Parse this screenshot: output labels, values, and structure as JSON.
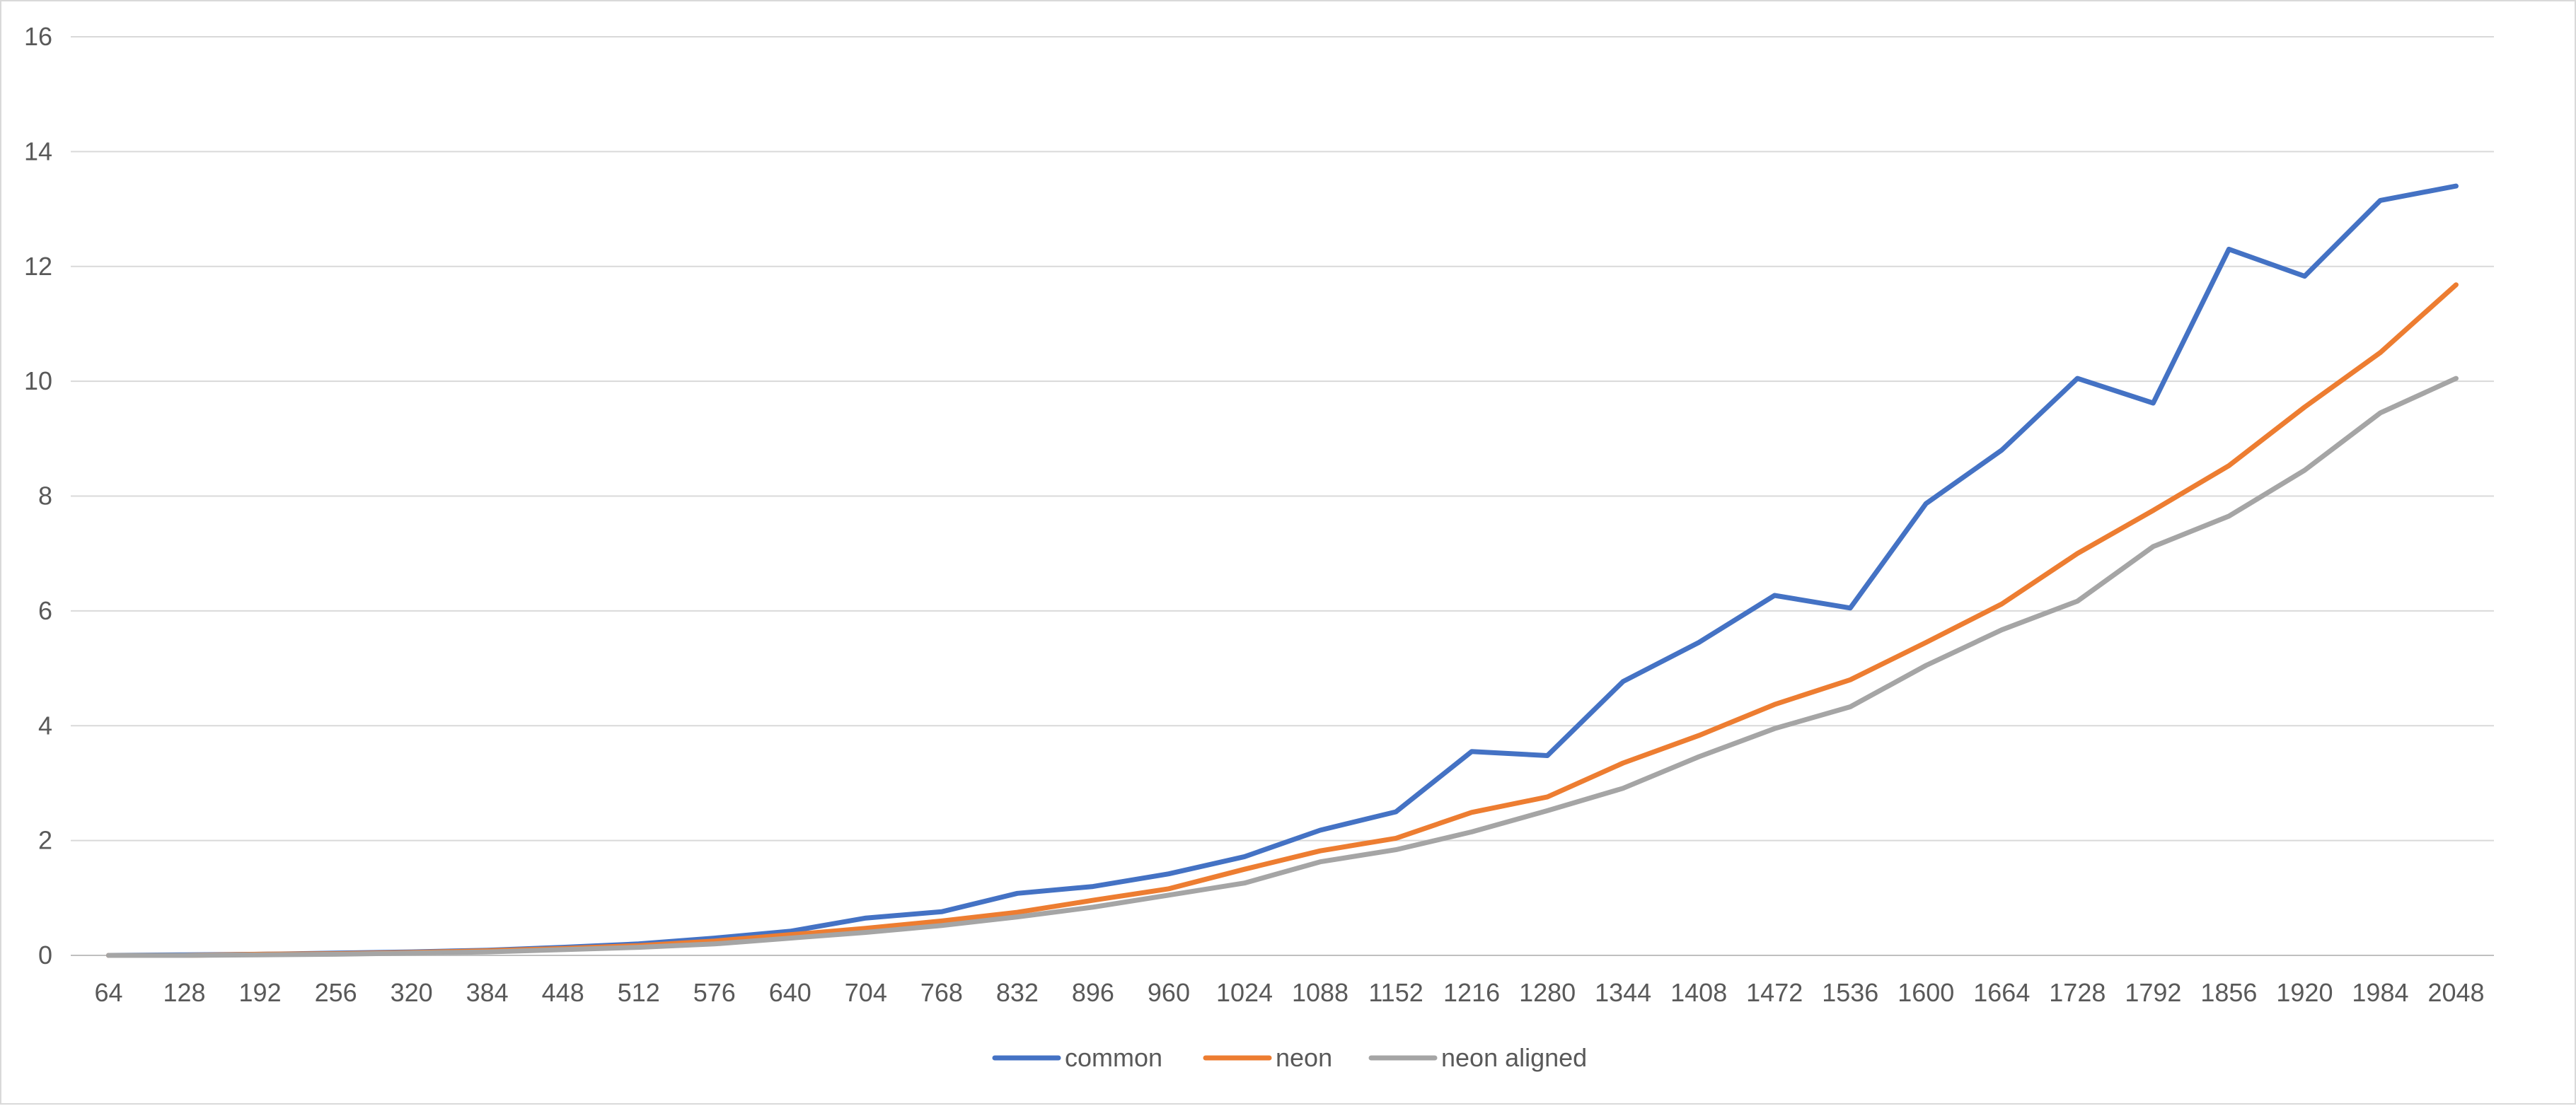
{
  "chart_data": {
    "type": "line",
    "title": "",
    "xlabel": "",
    "ylabel": "",
    "ylim": [
      0,
      16
    ],
    "yticks": [
      0,
      2,
      4,
      6,
      8,
      10,
      12,
      14,
      16
    ],
    "grid": true,
    "legend_position": "bottom",
    "categories": [
      "64",
      "128",
      "192",
      "256",
      "320",
      "384",
      "448",
      "512",
      "576",
      "640",
      "704",
      "768",
      "832",
      "896",
      "960",
      "1024",
      "1088",
      "1152",
      "1216",
      "1280",
      "1344",
      "1408",
      "1472",
      "1536",
      "1600",
      "1664",
      "1728",
      "1792",
      "1856",
      "1920",
      "1984",
      "2048"
    ],
    "series": [
      {
        "name": "common",
        "color": "#4472c4",
        "values": [
          0.0,
          0.01,
          0.02,
          0.04,
          0.06,
          0.09,
          0.14,
          0.2,
          0.3,
          0.42,
          0.65,
          0.76,
          1.08,
          1.2,
          1.42,
          1.72,
          2.18,
          2.5,
          3.55,
          3.48,
          4.77,
          5.45,
          6.27,
          6.05,
          7.87,
          8.8,
          10.05,
          9.62,
          12.3,
          11.83,
          13.15,
          13.4
        ]
      },
      {
        "name": "neon",
        "color": "#ed7d31",
        "values": [
          0.0,
          0.0,
          0.02,
          0.03,
          0.05,
          0.08,
          0.12,
          0.17,
          0.25,
          0.36,
          0.47,
          0.6,
          0.75,
          0.96,
          1.16,
          1.5,
          1.82,
          2.04,
          2.49,
          2.76,
          3.35,
          3.83,
          4.37,
          4.8,
          5.45,
          6.12,
          7.0,
          7.75,
          8.53,
          9.55,
          10.5,
          11.68
        ]
      },
      {
        "name": "neon aligned",
        "color": "#a5a5a5",
        "values": [
          0.0,
          0.0,
          0.01,
          0.02,
          0.04,
          0.06,
          0.1,
          0.14,
          0.2,
          0.3,
          0.4,
          0.52,
          0.67,
          0.84,
          1.05,
          1.26,
          1.63,
          1.84,
          2.15,
          2.52,
          2.91,
          3.46,
          3.95,
          4.33,
          5.05,
          5.67,
          6.17,
          7.12,
          7.65,
          8.45,
          9.45,
          10.05
        ]
      }
    ]
  }
}
